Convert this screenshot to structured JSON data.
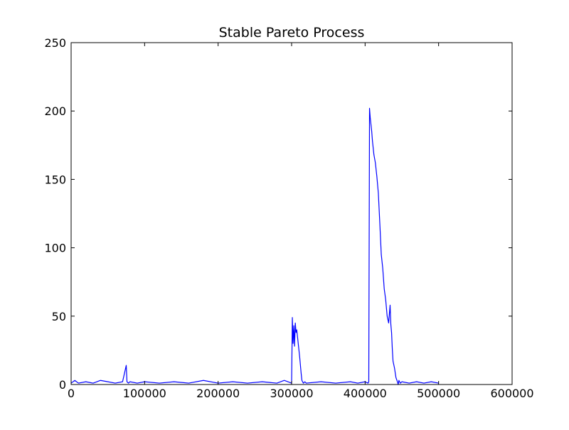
{
  "chart_data": {
    "type": "line",
    "title": "Stable Pareto Process",
    "xlabel": "",
    "ylabel": "",
    "xlim": [
      0,
      600000
    ],
    "ylim": [
      0,
      250
    ],
    "xticks": [
      0,
      100000,
      200000,
      300000,
      400000,
      500000,
      600000
    ],
    "xtick_labels": [
      "0",
      "100000",
      "200000",
      "300000",
      "400000",
      "500000",
      "600000"
    ],
    "yticks": [
      0,
      50,
      100,
      150,
      200,
      250
    ],
    "ytick_labels": [
      "0",
      "50",
      "100",
      "150",
      "200",
      "250"
    ],
    "grid": false,
    "legend": "none",
    "series": [
      {
        "color": "#0000ff",
        "x": [
          0,
          5000,
          10000,
          20000,
          30000,
          40000,
          50000,
          60000,
          70000,
          75000,
          76000,
          78000,
          80000,
          90000,
          100000,
          120000,
          140000,
          160000,
          180000,
          200000,
          220000,
          240000,
          260000,
          280000,
          290000,
          300000,
          301000,
          302000,
          303000,
          304000,
          305000,
          306000,
          307000,
          308000,
          309000,
          310000,
          311000,
          312000,
          313000,
          314000,
          316000,
          318000,
          320000,
          340000,
          360000,
          380000,
          390000,
          400000,
          404000,
          405000,
          406000,
          407000,
          408000,
          409000,
          410000,
          412000,
          414000,
          416000,
          418000,
          420000,
          422000,
          424000,
          426000,
          428000,
          430000,
          432000,
          434000,
          435000,
          436000,
          437000,
          438000,
          440000,
          442000,
          444000,
          445000,
          446000,
          448000,
          450000,
          460000,
          470000,
          480000,
          490000,
          500000
        ],
        "y": [
          1,
          3,
          1,
          2,
          1,
          3,
          2,
          1,
          2,
          14,
          2,
          1,
          2,
          1,
          2,
          1,
          2,
          1,
          3,
          1,
          2,
          1,
          2,
          1,
          3,
          1,
          49,
          30,
          43,
          28,
          45,
          38,
          40,
          35,
          30,
          25,
          20,
          14,
          8,
          3,
          1,
          2,
          1,
          2,
          1,
          2,
          1,
          2,
          1,
          2,
          202,
          195,
          190,
          185,
          178,
          168,
          162,
          152,
          140,
          118,
          95,
          85,
          70,
          62,
          50,
          45,
          58,
          44,
          38,
          26,
          17,
          12,
          5,
          2,
          0,
          3,
          1,
          2,
          1,
          2,
          1,
          2,
          1
        ]
      }
    ]
  }
}
